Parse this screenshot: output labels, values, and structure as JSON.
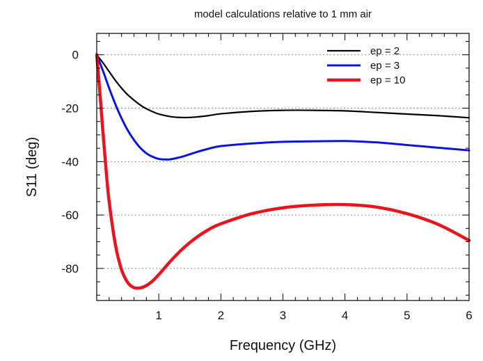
{
  "chart_data": {
    "type": "line",
    "title": "model calculations relative to 1 mm air",
    "xlabel": "Frequency (GHz)",
    "ylabel": "S11 (deg)",
    "xlim": [
      0,
      6
    ],
    "ylim": [
      -92,
      8
    ],
    "xticks": [
      1,
      2,
      3,
      4,
      5,
      6
    ],
    "yticks": [
      0,
      -20,
      -40,
      -60,
      -80
    ],
    "grid": "horizontal-dotted",
    "legend_position": "top-right",
    "series": [
      {
        "name": "ep = 2",
        "color": "#000000",
        "x": [
          0,
          0.1,
          0.2,
          0.3,
          0.4,
          0.5,
          0.6,
          0.7,
          0.8,
          0.9,
          1.0,
          1.2,
          1.4,
          1.6,
          1.8,
          2.0,
          2.5,
          3.0,
          3.5,
          4.0,
          4.5,
          5.0,
          5.5,
          6.0
        ],
        "y": [
          0,
          -3.0,
          -6.3,
          -9.6,
          -12.5,
          -15.0,
          -17.0,
          -18.8,
          -20.2,
          -21.3,
          -22.2,
          -23.2,
          -23.5,
          -23.3,
          -22.8,
          -22.1,
          -21.2,
          -20.8,
          -20.8,
          -21.0,
          -21.6,
          -22.2,
          -22.8,
          -23.6
        ]
      },
      {
        "name": "ep = 3",
        "color": "#0a14e0",
        "x": [
          0,
          0.1,
          0.2,
          0.3,
          0.4,
          0.5,
          0.6,
          0.7,
          0.8,
          0.9,
          1.0,
          1.1,
          1.2,
          1.4,
          1.6,
          1.8,
          2.0,
          2.5,
          3.0,
          3.5,
          4.0,
          4.5,
          5.0,
          5.5,
          6.0
        ],
        "y": [
          0,
          -6.0,
          -12.5,
          -18.5,
          -23.8,
          -28.3,
          -31.9,
          -34.8,
          -36.9,
          -38.2,
          -39.0,
          -39.2,
          -39.1,
          -38.0,
          -36.5,
          -35.2,
          -34.2,
          -33.2,
          -32.6,
          -32.4,
          -32.3,
          -32.8,
          -33.8,
          -34.8,
          -35.8
        ]
      },
      {
        "name": "ep = 10",
        "color": "#e8141e",
        "x": [
          0,
          0.05,
          0.1,
          0.15,
          0.2,
          0.3,
          0.4,
          0.5,
          0.6,
          0.7,
          0.8,
          0.9,
          1.0,
          1.2,
          1.4,
          1.6,
          1.8,
          2.0,
          2.5,
          3.0,
          3.5,
          4.0,
          4.5,
          5.0,
          5.5,
          6.0
        ],
        "y": [
          0,
          -14.0,
          -29.0,
          -43.0,
          -55.0,
          -71.0,
          -80.5,
          -85.3,
          -87.2,
          -87.3,
          -86.4,
          -84.7,
          -82.3,
          -77.0,
          -72.3,
          -68.5,
          -65.5,
          -63.3,
          -59.5,
          -57.3,
          -56.3,
          -56.1,
          -57.0,
          -59.5,
          -63.5,
          -69.5
        ]
      }
    ]
  }
}
